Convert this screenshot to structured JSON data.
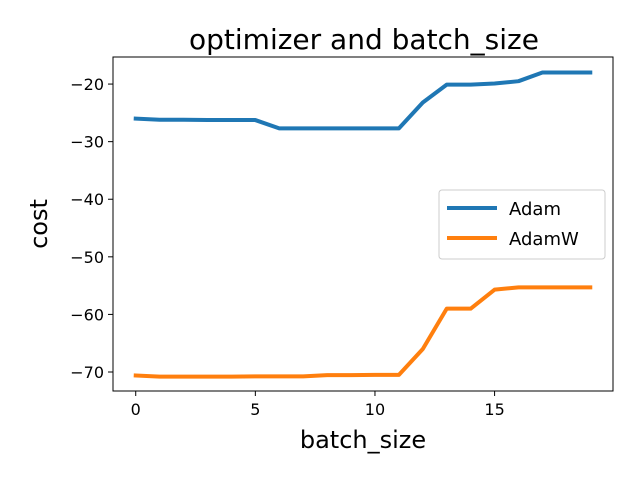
{
  "chart_data": {
    "type": "line",
    "title": "optimizer and batch_size",
    "xlabel": "batch_size",
    "ylabel": "cost",
    "xlim": [
      -0.95,
      19.95
    ],
    "ylim": [
      -73.3,
      -15.3
    ],
    "xticks": [
      0,
      5,
      10,
      15
    ],
    "xtick_labels": [
      "0",
      "5",
      "10",
      "15"
    ],
    "yticks": [
      -70,
      -60,
      -50,
      -40,
      -30,
      -20
    ],
    "ytick_labels": [
      "−70",
      "−60",
      "−50",
      "−40",
      "−30",
      "−20"
    ],
    "grid": false,
    "legend_position": "center-right",
    "x": [
      0,
      1,
      2,
      3,
      4,
      5,
      6,
      7,
      8,
      9,
      10,
      11,
      12,
      13,
      14,
      15,
      16,
      17,
      18,
      19
    ],
    "series": [
      {
        "name": "Adam",
        "color": "#1f77b4",
        "values": [
          -26.0,
          -26.2,
          -26.2,
          -26.25,
          -26.25,
          -26.25,
          -27.7,
          -27.7,
          -27.7,
          -27.7,
          -27.7,
          -27.7,
          -23.2,
          -20.1,
          -20.1,
          -19.9,
          -19.5,
          -18.0,
          -18.0,
          -18.0
        ]
      },
      {
        "name": "AdamW",
        "color": "#ff7f0e",
        "values": [
          -70.6,
          -70.8,
          -70.8,
          -70.8,
          -70.8,
          -70.75,
          -70.75,
          -70.75,
          -70.55,
          -70.55,
          -70.5,
          -70.5,
          -66.0,
          -59.0,
          -59.0,
          -55.7,
          -55.3,
          -55.3,
          -55.3,
          -55.3
        ]
      }
    ]
  }
}
